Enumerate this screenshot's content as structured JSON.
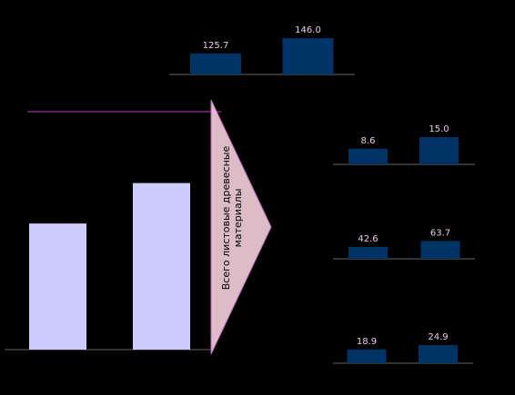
{
  "chart_data": [
    {
      "type": "bar",
      "values": [
        125.7,
        146.0
      ],
      "value_labels": [
        "125.7",
        "146.0"
      ],
      "color": "#003366",
      "ylim": [
        98,
        146
      ]
    },
    {
      "type": "bar",
      "values": [
        53,
        70
      ],
      "color": "#ccccff",
      "ylim": [
        0,
        100
      ],
      "annotations": [
        "Всего листовые древесные",
        "материалы"
      ]
    },
    {
      "type": "bar",
      "values": [
        8.6,
        15.0
      ],
      "value_labels": [
        "8.6",
        "15.0"
      ],
      "color": "#003366",
      "ylim": [
        0,
        20
      ]
    },
    {
      "type": "bar",
      "values": [
        42.6,
        63.7
      ],
      "value_labels": [
        "42.6",
        "63.7"
      ],
      "color": "#003366",
      "ylim": [
        0,
        130
      ]
    },
    {
      "type": "bar",
      "values": [
        18.9,
        24.9
      ],
      "value_labels": [
        "18.9",
        "24.9"
      ],
      "color": "#003366",
      "ylim": [
        0,
        50
      ]
    }
  ]
}
